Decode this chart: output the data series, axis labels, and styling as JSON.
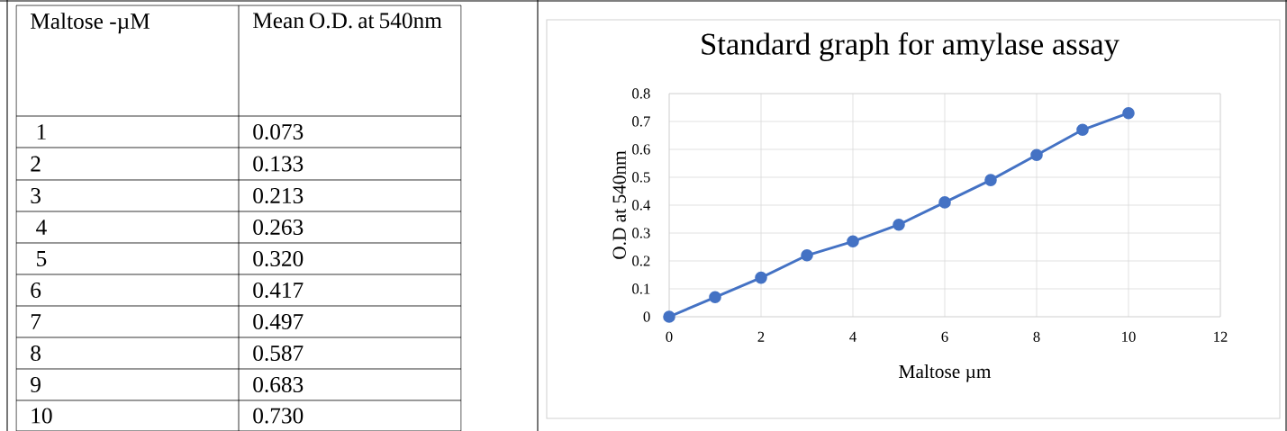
{
  "chart_data": {
    "type": "line",
    "title": "Standard graph for amylase assay",
    "xlabel": "Maltose µm",
    "ylabel": "O.D at 540nm",
    "annotations": [
      "Maltose -µM",
      "Mean O.D. at 540nm",
      " 1",
      "0.073",
      "2",
      "0.133",
      "3",
      "0.213",
      " 4",
      "0.263",
      " 5",
      "0.320",
      "6",
      "0.417",
      "7",
      "0.497",
      "8",
      "0.587",
      "9",
      "0.683",
      "10",
      "0.730"
    ],
    "x": [
      0,
      1,
      2,
      3,
      4,
      5,
      6,
      7,
      8,
      9,
      10
    ],
    "values": [
      0,
      0.07,
      0.14,
      0.22,
      0.27,
      0.33,
      0.41,
      0.49,
      0.58,
      0.67,
      0.73
    ],
    "color": "#4472c4",
    "marker": "circle",
    "line_style": "solid",
    "grid": true,
    "xlim": [
      0,
      12
    ],
    "xticks": [
      0,
      2,
      4,
      6,
      8,
      10,
      12
    ],
    "ylim": [
      0,
      0.8
    ],
    "yticks": [
      0,
      0.1,
      0.2,
      0.3,
      0.4,
      0.5,
      0.6,
      0.7,
      0.8
    ]
  }
}
